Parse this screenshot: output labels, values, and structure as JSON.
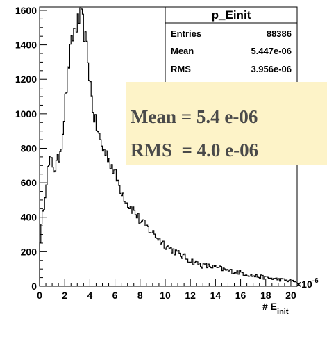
{
  "chart_data": {
    "type": "histogram",
    "title": "",
    "xlabel_main": "# E",
    "xlabel_sub": "init",
    "x_exponent_base": "×10",
    "x_exponent_power": "-6",
    "xlim": [
      0,
      20.5
    ],
    "ylim": [
      0,
      1620
    ],
    "xticks": [
      "0",
      "2",
      "4",
      "6",
      "8",
      "10",
      "12",
      "14",
      "16",
      "18",
      "20"
    ],
    "yticks": [
      "0",
      "200",
      "400",
      "600",
      "800",
      "1000",
      "1200",
      "1400",
      "1600"
    ],
    "grid": false,
    "x": [
      0.0,
      0.3,
      0.6,
      0.9,
      1.2,
      1.5,
      1.8,
      2.1,
      2.4,
      2.7,
      3.0,
      3.2,
      3.4,
      3.6,
      3.8,
      4.0,
      4.2,
      4.4,
      4.7,
      5.0,
      5.5,
      6.0,
      6.5,
      7.0,
      7.5,
      8.0,
      9.0,
      10.0,
      11.0,
      12.0,
      13.0,
      14.0,
      15.0,
      16.0,
      17.0,
      18.0,
      19.0,
      20.0
    ],
    "values": [
      240,
      440,
      660,
      730,
      680,
      730,
      860,
      1120,
      1330,
      1470,
      1520,
      1555,
      1550,
      1450,
      1350,
      1200,
      1060,
      960,
      880,
      800,
      750,
      650,
      560,
      480,
      440,
      380,
      310,
      240,
      190,
      150,
      120,
      110,
      90,
      80,
      60,
      50,
      40,
      30
    ],
    "stats": {
      "title": "p_Einit",
      "rows": [
        {
          "label": "Entries",
          "value": "88386"
        },
        {
          "label": "Mean",
          "value": "5.447e-06"
        },
        {
          "label": "RMS",
          "value": "3.956e-06"
        }
      ]
    },
    "annotation": {
      "line1": "Mean = 5.4 e-06",
      "line2": "RMS  = 4.0 e-06",
      "background": "#fdf3c8"
    },
    "line_color": "#000000"
  }
}
